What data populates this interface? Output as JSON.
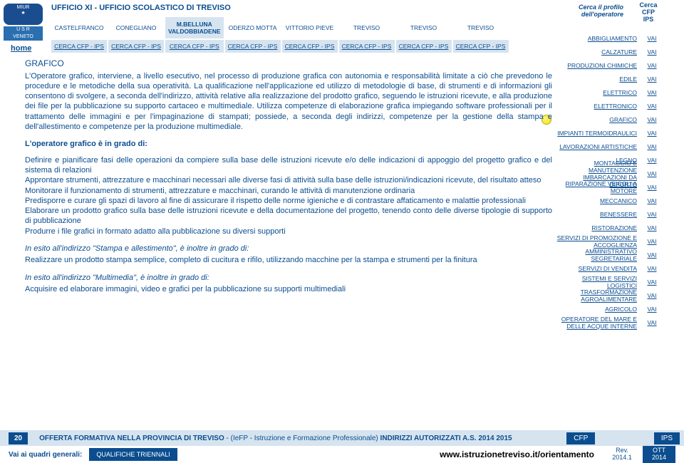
{
  "header": {
    "office_title": "UFFICIO XI - UFFICIO SCOLASTICO DI TREVISO",
    "home_label": "home",
    "profile_search": "Cerca il profilo dell'operatore",
    "cfp_search_line1": "Cerca",
    "cfp_search_line2": "CFP",
    "cfp_search_line3": "IPS",
    "locations": [
      "CASTELFRANCO",
      "CONEGLIANO",
      "M.BELLUNA VALDOBBIADENE",
      "ODERZO MOTTA",
      "VITTORIO PIEVE",
      "TREVISO",
      "TREVISO",
      "TREVISO"
    ],
    "cerca_label": "CERCA CFP - IPS"
  },
  "sidebar": [
    {
      "label": "ABBIGLIAMENTO",
      "vai": "VAI"
    },
    {
      "label": "CALZATURE",
      "vai": "VAI"
    },
    {
      "label": "PRODUZIONI CHIMICHE",
      "vai": "VAI"
    },
    {
      "label": "EDILE",
      "vai": "VAI"
    },
    {
      "label": "ELETTRICO",
      "vai": "VAI"
    },
    {
      "label": "ELETTRONICO",
      "vai": "VAI"
    },
    {
      "label": "GRAFICO",
      "vai": "VAI",
      "active": true
    },
    {
      "label": "IMPIANTI TERMOIDRAULICI",
      "vai": "VAI"
    },
    {
      "label": "LAVORAZIONI ARTISTICHE",
      "vai": "VAI"
    },
    {
      "label": "LEGNO",
      "vai": "VAI"
    },
    {
      "label": "MONTAGGIO E MANUTENZIONE IMBARCAZIONI DA DIPORTO",
      "vai": "VAI"
    },
    {
      "label": "RIPARAZIONE VEICOLI A MOTORE",
      "vai": "VAI"
    },
    {
      "label": "MECCANICO",
      "vai": "VAI"
    },
    {
      "label": "BENESSERE",
      "vai": "VAI"
    },
    {
      "label": "RISTORAZIONE",
      "vai": "VAI"
    },
    {
      "label": "SERVIZI DI PROMOZIONE E ACCOGLIENZA",
      "vai": "VAI"
    },
    {
      "label": "AMMINISTRATIVO SEGRETARIALE",
      "vai": "VAI"
    },
    {
      "label": "SERVIZI DI VENDITA",
      "vai": "VAI"
    },
    {
      "label": "SISTEMI E SERVIZI LOGISTICI",
      "vai": "VAI"
    },
    {
      "label": "TRASFORMAZIONE AGROALIMENTARE",
      "vai": "VAI"
    },
    {
      "label": "AGRICOLO",
      "vai": "VAI"
    },
    {
      "label": "OPERATORE DEL MARE E DELLE ACQUE INTERNE",
      "vai": "VAI"
    }
  ],
  "main": {
    "title": "GRAFICO",
    "description": "L'Operatore grafico, interviene, a livello esecutivo, nel processo di produzione grafica con autonomia e responsabilità limitate a ciò che prevedono le procedure e le metodiche della sua operatività. La qualificazione nell'applicazione ed utilizzo di metodologie di base, di strumenti e di informazioni gli consentono di svolgere, a seconda dell'indirizzo, attività relative alla realizzazione del prodotto grafico, seguendo le istruzioni ricevute, e alla produzione dei file per la pubblicazione su supporto cartaceo e multimediale. Utilizza competenze di elaborazione grafica impiegando software professionali per il trattamento delle immagini e per l'impaginazione di stampati; possiede, a seconda degli indirizzi, competenze per la gestione della stampa e dell'allestimento e competenze per la produzione multimediale.",
    "capable_heading": "L'operatore grafico è in grado di:",
    "bullets": [
      "Definire e pianificare fasi delle operazioni da compiere sulla base delle istruzioni ricevute e/o delle indicazioni di appoggio del progetto grafico e del sistema di relazioni",
      "Approntare strumenti, attrezzature e macchinari necessari alle diverse fasi di attività sulla base delle istruzioni/indicazioni ricevute, del risultato atteso",
      "Monitorare il funzionamento di strumenti, attrezzature e macchinari, curando le attività di manutenzione ordinaria",
      "Predisporre e curare gli spazi di lavoro al fine di assicurare il rispetto delle norme igieniche e di contrastare affaticamento e malattie professionali",
      "Elaborare un prodotto grafico sulla base delle istruzioni ricevute e della documentazione del progetto, tenendo conto delle diverse tipologie di supporto di pubblicazione",
      "Produrre i file grafici in formato adatto alla pubblicazione su diversi supporti"
    ],
    "esito1_heading": "In esito all'indirizzo \"Stampa e allestimento\", è inoltre in grado di:",
    "esito1_text": "Realizzare un prodotto stampa semplice, completo di cucitura e rifilo, utilizzando macchine per la stampa e strumenti per la finitura",
    "esito2_heading": "In esito all'indirizzo \"Multimedia\", è inoltre in grado di:",
    "esito2_text": "Acquisire ed elaborare immagini, video e grafici per la pubblicazione su supporti multimediali"
  },
  "footer": {
    "page_number": "20",
    "offer_label": "OFFERTA FORMATIVA NELLA PROVINCIA DI TREVISO",
    "offer_detail": " - (IeFP - Istruzione e Formazione Professionale) ",
    "offer_bold": "INDIRIZZI AUTORIZZATI A.S. 2014 2015",
    "cfp_pill": "CFP",
    "ips_pill": "IPS",
    "quadri_label": "Vai ai quadri generali:",
    "quadri_button": "QUALIFICHE TRIENNALI",
    "url": "www.istruzionetreviso.it/orientamento",
    "rev_line1": "Rev.",
    "rev_line2": "2014.1",
    "ott_line1": "OTT",
    "ott_line2": "2014"
  },
  "colors": {
    "primary": "#0b4d8f",
    "light_bg": "#d6e4f0"
  }
}
